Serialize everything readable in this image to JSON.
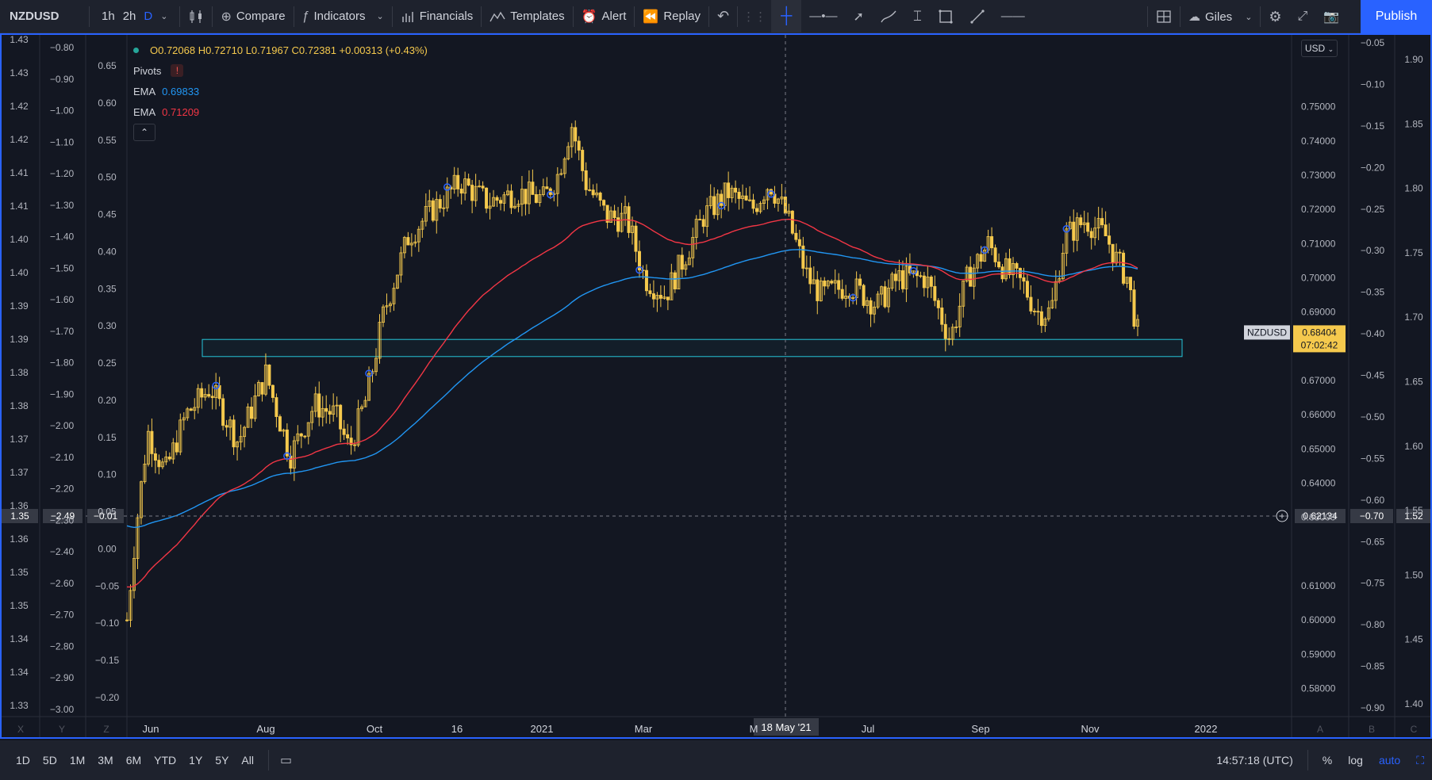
{
  "toolbar": {
    "symbol": "NZDUSD",
    "timeframes": [
      {
        "label": "1h",
        "active": false
      },
      {
        "label": "2h",
        "active": false
      },
      {
        "label": "D",
        "active": true
      }
    ],
    "compare": "Compare",
    "indicators": "Indicators",
    "financials": "Financials",
    "templates": "Templates",
    "alert": "Alert",
    "replay": "Replay",
    "layout_name": "Giles",
    "publish": "Publish"
  },
  "legend": {
    "ohlc": "O0.72068 H0.72710 L0.71967 C0.72381 +0.00313 (+0.43%)",
    "pivots": "Pivots",
    "ema1_label": "EMA",
    "ema1_value": "0.69833",
    "ema2_label": "EMA",
    "ema2_value": "0.71209"
  },
  "colors": {
    "background": "#131722",
    "candles": "#f5c94d",
    "ema_blue": "#2196f3",
    "ema_red": "#f23645",
    "zone": "#26c6da",
    "accent": "#2962ff"
  },
  "axes": {
    "main_price": [
      "0.75000",
      "0.74000",
      "0.73000",
      "0.72000",
      "0.71000",
      "0.70000",
      "0.69000",
      "0.67000",
      "0.66000",
      "0.65000",
      "0.64000",
      "0.63000",
      "0.61000",
      "0.60000",
      "0.59000",
      "0.58000"
    ],
    "far_left": [
      "1.43",
      "1.43",
      "1.42",
      "1.42",
      "1.41",
      "1.41",
      "1.40",
      "1.40",
      "1.39",
      "1.39",
      "1.38",
      "1.38",
      "1.37",
      "1.37",
      "1.36",
      "1.36",
      "1.35",
      "1.35",
      "1.34",
      "1.34",
      "1.33"
    ],
    "left2": [
      "−0.80",
      "−0.90",
      "−1.00",
      "−1.10",
      "−1.20",
      "−1.30",
      "−1.40",
      "−1.50",
      "−1.60",
      "−1.70",
      "−1.80",
      "−1.90",
      "−2.00",
      "−2.10",
      "−2.20",
      "−2.30",
      "−2.40",
      "−2.60",
      "−2.70",
      "−2.80",
      "−2.90",
      "−3.00"
    ],
    "left3": [
      "0.65",
      "0.60",
      "0.55",
      "0.50",
      "0.45",
      "0.40",
      "0.35",
      "0.30",
      "0.25",
      "0.20",
      "0.15",
      "0.10",
      "0.05",
      "0.00",
      "−0.05",
      "−0.10",
      "−0.15",
      "−0.20"
    ],
    "right2": [
      "−0.05",
      "−0.10",
      "−0.15",
      "−0.20",
      "−0.25",
      "−0.30",
      "−0.35",
      "−0.40",
      "−0.45",
      "−0.50",
      "−0.55",
      "−0.60",
      "−0.65",
      "−0.75",
      "−0.80",
      "−0.85",
      "−0.90"
    ],
    "right3": [
      "1.90",
      "1.85",
      "1.80",
      "1.75",
      "1.70",
      "1.65",
      "1.60",
      "1.55",
      "1.50",
      "1.45",
      "1.40"
    ],
    "time": [
      "Jun",
      "Aug",
      "Oct",
      "16",
      "2021",
      "Mar",
      "M",
      "Jul",
      "Sep",
      "Nov",
      "2022"
    ],
    "crosshair_date": "18 May '21",
    "bottom_letters": [
      "X",
      "Y",
      "Z",
      "A",
      "B",
      "C"
    ]
  },
  "crosshair": {
    "far_left": "1.35",
    "left2": "−2.49",
    "left3": "−0.01",
    "main": "0.62134",
    "right2": "−0.70",
    "right3": "1.52"
  },
  "last_price": {
    "symbol": "NZDUSD",
    "price": "0.68404",
    "countdown": "07:02:42"
  },
  "currency": "USD",
  "bottom": {
    "ranges": [
      "1D",
      "5D",
      "1M",
      "3M",
      "6M",
      "YTD",
      "1Y",
      "5Y",
      "All"
    ],
    "time": "14:57:18 (UTC)",
    "percent": "%",
    "log": "log",
    "auto": "auto"
  },
  "chart_data": {
    "type": "candlestick",
    "instrument": "NZDUSD",
    "ylim": [
      0.575,
      0.765
    ],
    "zone": [
      0.677,
      0.682
    ],
    "series": [
      {
        "name": "EMA",
        "value": "0.69833"
      },
      {
        "name": "EMA",
        "value": "0.71209"
      }
    ]
  }
}
